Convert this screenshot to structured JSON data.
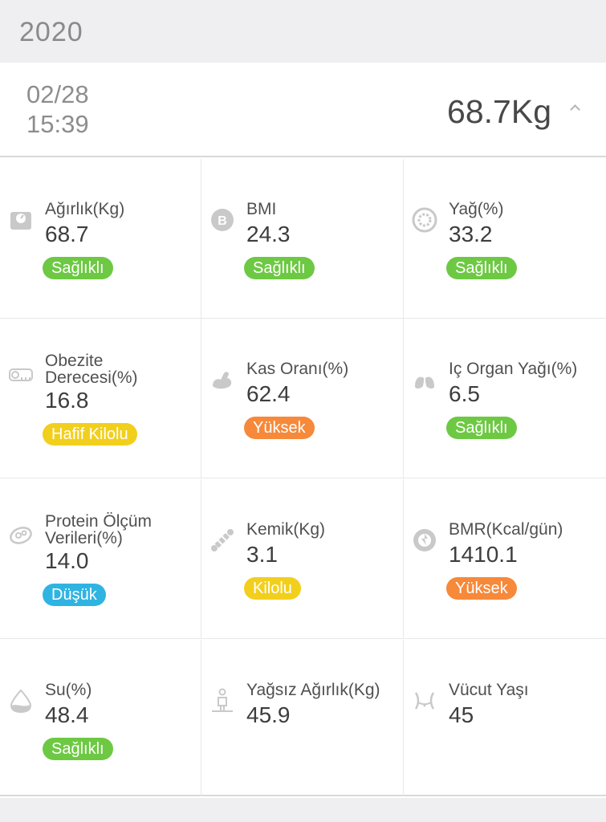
{
  "year": "2020",
  "entry": {
    "date": "02/28",
    "time": "15:39",
    "weight": "68.7Kg"
  },
  "colors": {
    "healthy": "#6dc943",
    "mild": "#f2cf1d",
    "high": "#f6893a",
    "low": "#2fb4e2"
  },
  "metrics": [
    {
      "icon": "scale-icon",
      "label": "Ağırlık(Kg)",
      "value": "68.7",
      "status": "Sağlıklı",
      "status_type": "healthy"
    },
    {
      "icon": "bmi-icon",
      "label": "BMI",
      "value": "24.3",
      "status": "Sağlıklı",
      "status_type": "healthy"
    },
    {
      "icon": "fat-icon",
      "label": "Yağ(%)",
      "value": "33.2",
      "status": "Sağlıklı",
      "status_type": "healthy"
    },
    {
      "icon": "tape-measure-icon",
      "label": "Obezite Derecesi(%)",
      "value": "16.8",
      "status": "Hafif Kilolu",
      "status_type": "mild"
    },
    {
      "icon": "muscle-icon",
      "label": "Kas Oranı(%)",
      "value": "62.4",
      "status": "Yüksek",
      "status_type": "high"
    },
    {
      "icon": "lungs-icon",
      "label": "Iç Organ Yağı(%)",
      "value": "6.5",
      "status": "Sağlıklı",
      "status_type": "healthy"
    },
    {
      "icon": "protein-icon",
      "label": "Protein Ölçüm Verileri(%)",
      "value": "14.0",
      "status": "Düşük",
      "status_type": "low"
    },
    {
      "icon": "bone-icon",
      "label": "Kemik(Kg)",
      "value": "3.1",
      "status": "Kilolu",
      "status_type": "mild"
    },
    {
      "icon": "bmr-icon",
      "label": "BMR(Kcal/gün)",
      "value": "1410.1",
      "status": "Yüksek",
      "status_type": "high"
    },
    {
      "icon": "water-drop-icon",
      "label": "Su(%)",
      "value": "48.4",
      "status": "Sağlıklı",
      "status_type": "healthy"
    },
    {
      "icon": "lean-body-icon",
      "label": "Yağsız Ağırlık(Kg)",
      "value": "45.9",
      "status": "",
      "status_type": ""
    },
    {
      "icon": "body-age-icon",
      "label": "Vücut Yaşı",
      "value": "45",
      "status": "",
      "status_type": ""
    }
  ]
}
